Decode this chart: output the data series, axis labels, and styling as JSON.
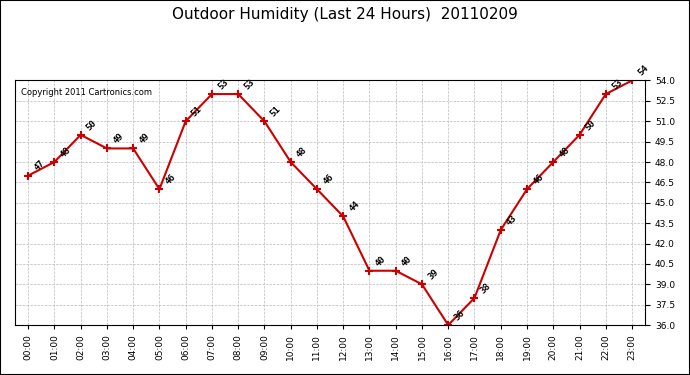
{
  "title": "Outdoor Humidity (Last 24 Hours)  20110209",
  "copyright_text": "Copyright 2011 Cartronics.com",
  "hours": [
    "00:00",
    "01:00",
    "02:00",
    "03:00",
    "04:00",
    "05:00",
    "06:00",
    "07:00",
    "08:00",
    "09:00",
    "10:00",
    "11:00",
    "12:00",
    "13:00",
    "14:00",
    "15:00",
    "16:00",
    "17:00",
    "18:00",
    "19:00",
    "20:00",
    "21:00",
    "22:00",
    "23:00"
  ],
  "values": [
    47,
    48,
    50,
    49,
    49,
    46,
    51,
    53,
    53,
    51,
    48,
    46,
    44,
    40,
    40,
    39,
    36,
    38,
    43,
    46,
    48,
    50,
    53,
    54
  ],
  "ylim": [
    36.0,
    54.0
  ],
  "yticks": [
    36.0,
    37.5,
    39.0,
    40.5,
    42.0,
    43.5,
    45.0,
    46.5,
    48.0,
    49.5,
    51.0,
    52.5,
    54.0
  ],
  "line_color": "#cc0000",
  "marker": "+",
  "marker_color": "#cc0000",
  "marker_size": 6,
  "marker_linewidth": 1.5,
  "line_width": 1.5,
  "grid_color": "#bbbbbb",
  "bg_color": "#ffffff",
  "plot_bg_color": "#ffffff",
  "title_fontsize": 11,
  "label_fontsize": 6.5,
  "annotation_fontsize": 6.5,
  "copyright_fontsize": 6
}
